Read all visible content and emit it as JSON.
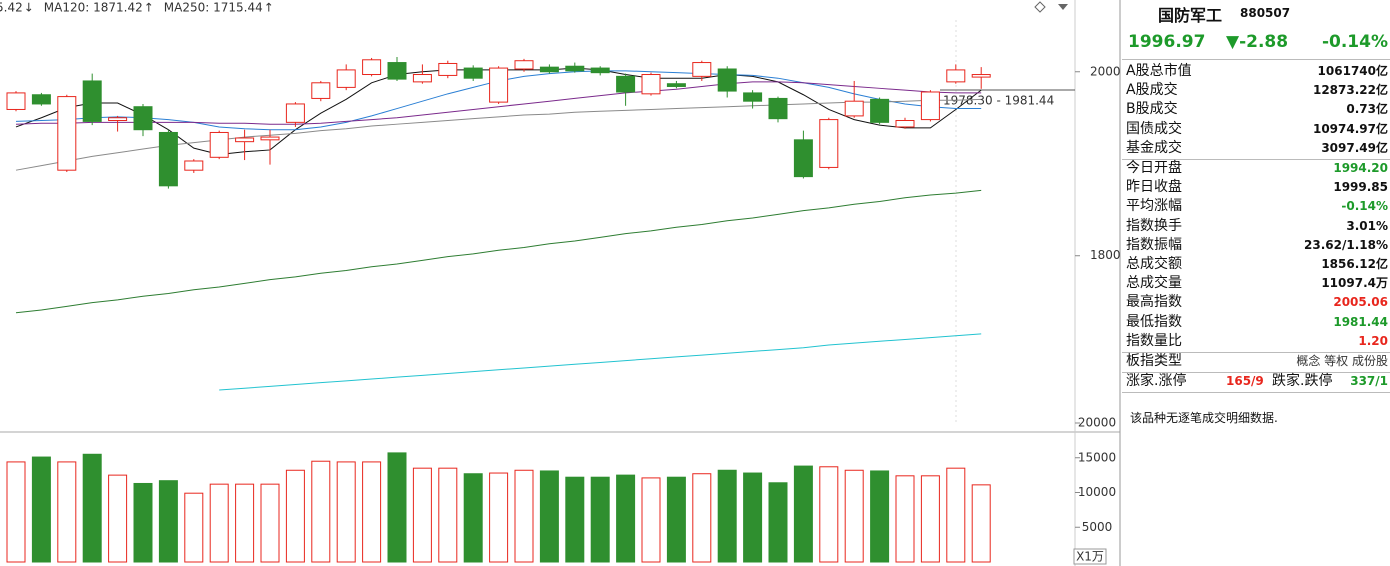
{
  "chart_data": [
    {
      "type": "candlestick",
      "legend": [
        {
          "text": "5.42",
          "arrow": "↓",
          "color": "#333333",
          "arrow_color": "#2f9a2f"
        },
        {
          "text": "MA120: 1871.42",
          "arrow": "↑",
          "color": "#2e7d32",
          "arrow_color": "#e8261d"
        },
        {
          "text": "MA250: 1715.44",
          "arrow": "↑",
          "color": "#22b5c8",
          "arrow_color": "#e8261d"
        }
      ],
      "annotation": "1978.30 - 1981.44",
      "open": [
        1959,
        1975,
        1893,
        1990,
        1947,
        1962,
        1934,
        1893,
        1907,
        1924,
        1926,
        1945,
        1971,
        1983,
        1997,
        2010,
        1989,
        1996,
        2004,
        1967,
        2003,
        2005,
        2006,
        2004,
        1995,
        1976,
        1987,
        1995,
        2003,
        1977,
        1971,
        1926,
        1896,
        1952,
        1970,
        1940,
        1948,
        1989,
        1994.2
      ],
      "high": [
        1979,
        1977,
        1975,
        1998,
        1952,
        1965,
        1937,
        1905,
        1936,
        1937,
        1937,
        1967,
        1990,
        2008,
        2015,
        2016,
        2008,
        2012,
        2007,
        2006,
        2014,
        2008,
        2010,
        2006,
        1998,
        1999,
        1990,
        2012,
        2006,
        1980,
        1973,
        1936,
        1950,
        1990,
        1972,
        1950,
        1980,
        2008,
        2005.06
      ],
      "low": [
        1957,
        1963,
        1891,
        1942,
        1935,
        1930,
        1873,
        1890,
        1905,
        1904,
        1899,
        1940,
        1968,
        1980,
        1995,
        1990,
        1987,
        1993,
        1990,
        1965,
        2000,
        1998,
        1999,
        1996,
        1963,
        1974,
        1982,
        1990,
        1972,
        1960,
        1945,
        1884,
        1894,
        1950,
        1943,
        1938,
        1946,
        1987,
        1981.44
      ],
      "close": [
        1977,
        1965,
        1973,
        1946,
        1950,
        1937,
        1876,
        1903,
        1934,
        1928,
        1929,
        1965,
        1988,
        2002,
        2013,
        1992,
        1997,
        2009,
        1993,
        2004,
        2012,
        2000,
        2001,
        1999,
        1978,
        1997,
        1984,
        2010,
        1979,
        1968,
        1949,
        1886,
        1948,
        1968,
        1945,
        1947,
        1978,
        2002,
        1996.97
      ],
      "up_color": "#e8261d",
      "down_color": "#2f8f2f",
      "lines": [
        {
          "color": "#111111",
          "values": [
            1940,
            1950,
            1961,
            1966,
            1966,
            1953,
            1937,
            1917,
            1910,
            1913,
            1915,
            1937,
            1955,
            1970,
            1988,
            1997,
            2000,
            2002,
            2002,
            2002,
            2002,
            2002,
            2004,
            2002,
            1997,
            1993,
            1993,
            1993,
            1997,
            1995,
            1989,
            1975,
            1959,
            1948,
            1942,
            1939,
            1939,
            1959,
            1980
          ]
        },
        {
          "color": "#2a7fd4",
          "values": [
            1946,
            1947,
            1948,
            1950,
            1951,
            1950,
            1948,
            1945,
            1940,
            1938,
            1937,
            1937,
            1940,
            1945,
            1952,
            1960,
            1968,
            1976,
            1983,
            1990,
            1995,
            1998,
            2000,
            2001,
            2001,
            2000,
            1999,
            1998,
            1997,
            1996,
            1993,
            1988,
            1983,
            1976,
            1970,
            1965,
            1962,
            1960,
            1960
          ]
        },
        {
          "color": "#7b2a8c",
          "values": [
            1943,
            1944,
            1944,
            1945,
            1945,
            1945,
            1945,
            1945,
            1944,
            1944,
            1943,
            1943,
            1944,
            1946,
            1948,
            1950,
            1953,
            1956,
            1959,
            1962,
            1965,
            1968,
            1971,
            1974,
            1977,
            1979,
            1981,
            1984,
            1987,
            1989,
            1989,
            1988,
            1986,
            1984,
            1982,
            1980,
            1978,
            1977,
            1977
          ]
        },
        {
          "color": "#8a8a8a",
          "values": [
            1893,
            1898,
            1903,
            1908,
            1912,
            1916,
            1920,
            1923,
            1926,
            1929,
            1931,
            1933,
            1936,
            1938,
            1941,
            1943,
            1945,
            1947,
            1949,
            1951,
            1953,
            1954,
            1956,
            1957,
            1958,
            1959,
            1960,
            1961,
            1962,
            1963,
            1964,
            1965,
            1966,
            1967,
            1967,
            1968,
            1969,
            1969,
            1970
          ]
        },
        {
          "color": "#2e7d32",
          "values": [
            1738,
            1741,
            1745,
            1749,
            1752,
            1756,
            1759,
            1763,
            1766,
            1770,
            1774,
            1777,
            1781,
            1784,
            1788,
            1791,
            1795,
            1799,
            1802,
            1806,
            1809,
            1813,
            1816,
            1820,
            1824,
            1827,
            1831,
            1834,
            1838,
            1841,
            1845,
            1849,
            1852,
            1856,
            1859,
            1863,
            1866,
            1868,
            1871
          ]
        },
        {
          "color": "#22c3d0",
          "values": [
            null,
            null,
            null,
            null,
            null,
            null,
            null,
            null,
            1654,
            1656,
            1658,
            1660,
            1662,
            1664,
            1666,
            1668,
            1670,
            1672,
            1674,
            1676,
            1678,
            1680,
            1682,
            1684,
            1686,
            1688,
            1690,
            1692,
            1694,
            1696,
            1698,
            1700,
            1703,
            1705,
            1707,
            1709,
            1711,
            1713,
            1715
          ]
        }
      ],
      "ylim": [
        1616,
        2078
      ],
      "yticks": [
        1800,
        2000
      ]
    },
    {
      "type": "bar",
      "values": [
        14400,
        15100,
        14400,
        15500,
        12500,
        11300,
        11700,
        9900,
        11200,
        11200,
        11200,
        13200,
        14500,
        14400,
        14400,
        15700,
        13500,
        13500,
        12700,
        12800,
        13200,
        13100,
        12200,
        12200,
        12500,
        12100,
        12200,
        12700,
        13200,
        12800,
        11400,
        13800,
        13700,
        13200,
        13100,
        12400,
        12400,
        13500,
        11100
      ],
      "ylim": [
        0,
        20000
      ],
      "yticks": [
        5000,
        10000,
        15000,
        20000
      ],
      "unit_label": "X1万"
    }
  ],
  "panel": {
    "title": "国防军工",
    "code": "880507",
    "price": "1996.97",
    "change": "▼-2.88",
    "percent": "-0.14%",
    "quote_color": "#1d9a2a",
    "sections": [
      [
        {
          "label": "A股总市值",
          "value": "1061740亿",
          "color": "#111111"
        },
        {
          "label": "A股成交",
          "value": "12873.22亿",
          "color": "#111111"
        },
        {
          "label": "B股成交",
          "value": "0.73亿",
          "color": "#111111"
        },
        {
          "label": "国债成交",
          "value": "10974.97亿",
          "color": "#111111"
        },
        {
          "label": "基金成交",
          "value": "3097.49亿",
          "color": "#111111"
        }
      ],
      [
        {
          "label": "今日开盘",
          "value": "1994.20",
          "color": "#1d9a2a"
        },
        {
          "label": "昨日收盘",
          "value": "1999.85",
          "color": "#111111"
        },
        {
          "label": "平均涨幅",
          "value": "-0.14%",
          "color": "#1d9a2a"
        },
        {
          "label": "指数换手",
          "value": "3.01%",
          "color": "#111111"
        },
        {
          "label": "指数振幅",
          "value": "23.62/1.18%",
          "color": "#111111"
        },
        {
          "label": "总成交额",
          "value": "1856.12亿",
          "color": "#111111"
        },
        {
          "label": "总成交量",
          "value": "11097.4万",
          "color": "#111111"
        },
        {
          "label": "最高指数",
          "value": "2005.06",
          "color": "#e8261d"
        },
        {
          "label": "最低指数",
          "value": "1981.44",
          "color": "#1d9a2a"
        },
        {
          "label": "指数量比",
          "value": "1.20",
          "color": "#e8261d"
        }
      ],
      [
        {
          "label": "板指类型",
          "value": "概念 等权 成份股",
          "color": "#333333"
        }
      ],
      [
        {
          "label": "涨家.涨停",
          "value": "165/9",
          "color": "#e8261d",
          "label2": "跌家.跌停",
          "value2": "337/1",
          "color2": "#1d9a2a"
        }
      ]
    ],
    "note": "该品种无逐笔成交明细数据."
  }
}
